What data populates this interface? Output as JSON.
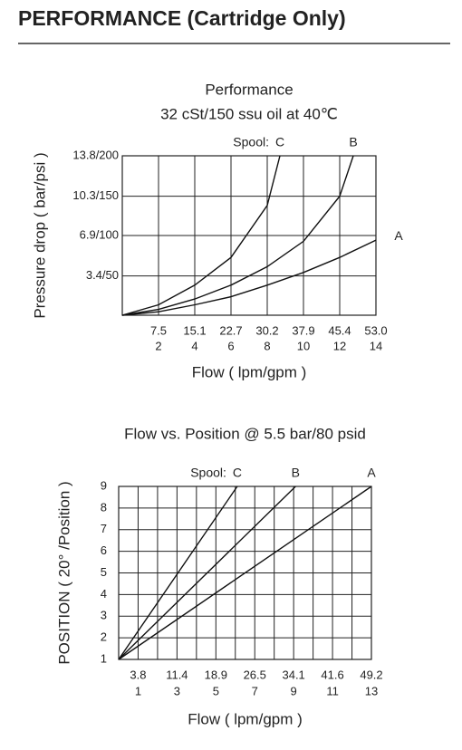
{
  "page_title": "PERFORMANCE (Cartridge Only)",
  "chart_data": [
    {
      "type": "line",
      "title": "Performance",
      "subtitle": "32 cSt/150 ssu oil at 40℃",
      "x_label": "Flow ( lpm/gpm )",
      "y_label": "Pressure drop ( bar/psi )",
      "annotation": "Spool:",
      "xlim": [
        0,
        14
      ],
      "ylim": [
        0,
        13.8
      ],
      "xticks": [
        2,
        4,
        6,
        8,
        10,
        12,
        14
      ],
      "x_lpm_labels": [
        "7.5",
        "15.1",
        "22.7",
        "30.2",
        "37.9",
        "45.4",
        "53.0"
      ],
      "yticks": [
        {
          "value": 3.4,
          "label": "3.4/50"
        },
        {
          "value": 6.9,
          "label": "6.9/100"
        },
        {
          "value": 10.3,
          "label": "10.3/150"
        },
        {
          "value": 13.8,
          "label": "13.8/200"
        }
      ],
      "grid": true,
      "minor_grid": false,
      "series": [
        {
          "name": "C",
          "color": "#111111",
          "x": [
            0,
            2,
            4,
            6,
            8,
            8.7
          ],
          "values": [
            0,
            0.9,
            2.6,
            5.0,
            9.5,
            13.8
          ]
        },
        {
          "name": "B",
          "color": "#111111",
          "x": [
            0,
            2,
            4,
            6,
            8,
            10,
            12,
            12.75
          ],
          "values": [
            0,
            0.5,
            1.4,
            2.6,
            4.2,
            6.4,
            10.3,
            13.8
          ]
        },
        {
          "name": "A",
          "color": "#111111",
          "x": [
            0,
            2,
            4,
            6,
            8,
            10,
            12,
            14
          ],
          "values": [
            0,
            0.3,
            0.9,
            1.6,
            2.6,
            3.7,
            5.0,
            6.5
          ]
        }
      ]
    },
    {
      "type": "line",
      "title": "Flow vs. Position @ 5.5 bar/80 psid",
      "x_label": "Flow ( lpm/gpm )",
      "y_label": "POSITION ( 20° /Position )",
      "annotation": "Spool:",
      "xlim": [
        0,
        13
      ],
      "ylim": [
        1,
        9
      ],
      "xticks": [
        1,
        3,
        5,
        7,
        9,
        11,
        13
      ],
      "x_lpm_labels": [
        "3.8",
        "11.4",
        "18.9",
        "26.5",
        "34.1",
        "41.6",
        "49.2"
      ],
      "yticks": [
        1,
        2,
        3,
        4,
        5,
        6,
        7,
        8,
        9
      ],
      "grid": true,
      "minor_grid": true,
      "series": [
        {
          "name": "C",
          "color": "#111111",
          "x": [
            0,
            6.1
          ],
          "values": [
            1,
            9
          ]
        },
        {
          "name": "B",
          "color": "#111111",
          "x": [
            0,
            9.1
          ],
          "values": [
            1,
            9
          ]
        },
        {
          "name": "A",
          "color": "#111111",
          "x": [
            0,
            13
          ],
          "values": [
            1,
            9
          ]
        }
      ]
    }
  ]
}
